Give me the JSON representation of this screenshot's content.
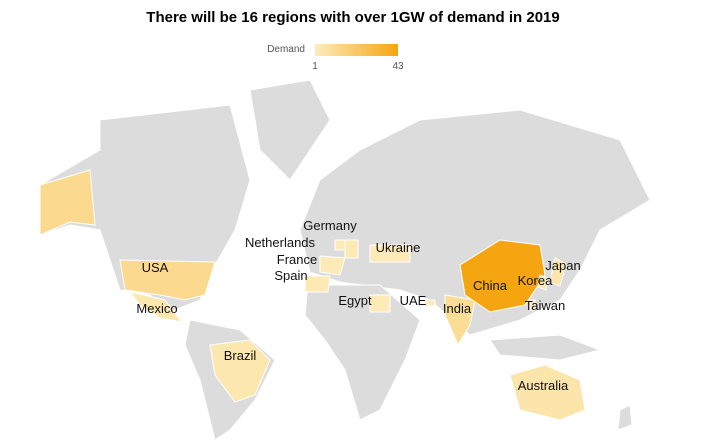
{
  "title": "There will be 16 regions with over 1GW of demand in 2019",
  "legend": {
    "label": "Demand",
    "min": 1,
    "max": 43,
    "colors": [
      "#fdecbb",
      "#f5a50f"
    ]
  },
  "regions": [
    {
      "name": "USA",
      "value": 12
    },
    {
      "name": "Mexico",
      "value": 4
    },
    {
      "name": "Brazil",
      "value": 4
    },
    {
      "name": "Germany",
      "value": 3
    },
    {
      "name": "Netherlands",
      "value": 2
    },
    {
      "name": "France",
      "value": 2
    },
    {
      "name": "Spain",
      "value": 3
    },
    {
      "name": "Ukraine",
      "value": 2
    },
    {
      "name": "Egypt",
      "value": 2
    },
    {
      "name": "UAE",
      "value": 1
    },
    {
      "name": "India",
      "value": 10
    },
    {
      "name": "China",
      "value": 43
    },
    {
      "name": "Korea",
      "value": 2
    },
    {
      "name": "Japan",
      "value": 5
    },
    {
      "name": "Taiwan",
      "value": 2
    },
    {
      "name": "Australia",
      "value": 5
    }
  ]
}
